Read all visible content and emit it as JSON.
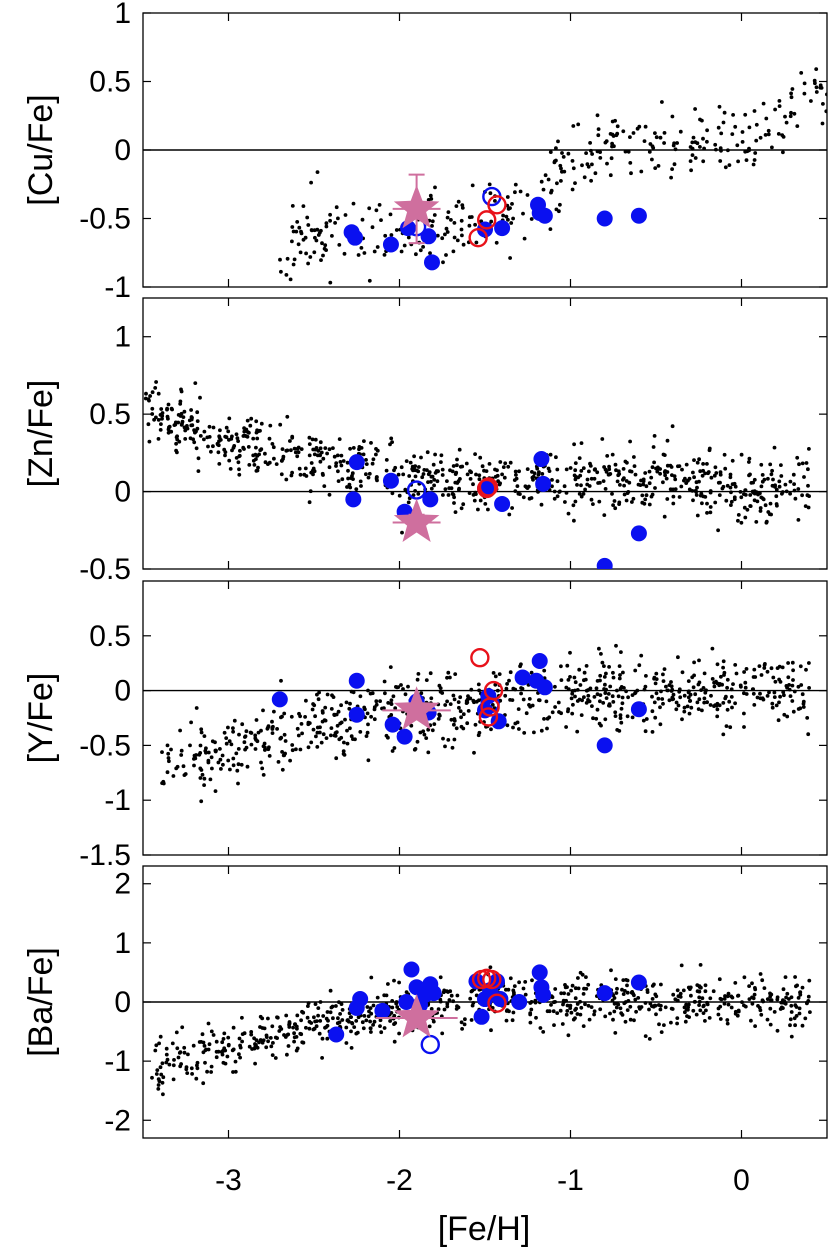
{
  "chart_data": {
    "type": "scatter",
    "xlabel": "[Fe/H]",
    "xlim": [
      -3.5,
      0.5
    ],
    "x_ticks": [
      "-3",
      "-2",
      "-1",
      "0"
    ],
    "colors": {
      "field": "#000000",
      "filled": "#0a10f0",
      "open_blue": "#0a10f0",
      "open_red": "#e8121a",
      "star": "#cf6f9e",
      "zero_line": "#000000"
    },
    "grid": false,
    "panels": [
      {
        "ylabel": "[Cu/Fe]",
        "ylim": [
          -1,
          1
        ],
        "y_ticks": [
          "1",
          "0.5",
          "0",
          "-0.5",
          "-1"
        ],
        "filled_blue": [
          [
            -2.28,
            -0.6
          ],
          [
            -2.26,
            -0.64
          ],
          [
            -2.05,
            -0.69
          ],
          [
            -1.95,
            -0.57
          ],
          [
            -1.83,
            -0.63
          ],
          [
            -1.81,
            -0.82
          ],
          [
            -1.5,
            -0.58
          ],
          [
            -1.4,
            -0.57
          ],
          [
            -1.19,
            -0.4
          ],
          [
            -1.18,
            -0.46
          ],
          [
            -1.15,
            -0.48
          ],
          [
            -0.8,
            -0.5
          ],
          [
            -0.6,
            -0.48
          ]
        ],
        "open_blue": [
          [
            -1.9,
            -0.56
          ],
          [
            -1.46,
            -0.34
          ]
        ],
        "open_red": [
          [
            -1.54,
            -0.64
          ],
          [
            -1.49,
            -0.51
          ],
          [
            -1.43,
            -0.4
          ]
        ],
        "star": [
          [
            -1.9,
            -0.43
          ]
        ],
        "star_errors": {
          "x": 0.14,
          "y_up": 0.25,
          "y_down": 0.25
        },
        "field_cloud": {
          "type": "scatter",
          "x_range": [
            -2.7,
            0.5
          ],
          "y_trend": [
            [
              -2.7,
              -0.7
            ],
            [
              -1.9,
              -0.55
            ],
            [
              -1.2,
              -0.4
            ],
            [
              -1.0,
              -0.05
            ],
            [
              -0.5,
              0.05
            ],
            [
              0.0,
              0.0
            ],
            [
              0.5,
              0.5
            ]
          ],
          "scatter": 0.14,
          "n": 360,
          "seed": 11
        }
      },
      {
        "ylabel": "[Zn/Fe]",
        "ylim": [
          -0.5,
          1.25
        ],
        "y_ticks": [
          "1",
          "0.5",
          "0",
          "-0.5"
        ],
        "filled_blue": [
          [
            -2.25,
            0.19
          ],
          [
            -2.27,
            -0.05
          ],
          [
            -2.05,
            0.07
          ],
          [
            -1.97,
            -0.13
          ],
          [
            -1.93,
            -0.17
          ],
          [
            -1.82,
            -0.05
          ],
          [
            -1.5,
            0.02
          ],
          [
            -1.47,
            0.03
          ],
          [
            -1.4,
            -0.08
          ],
          [
            -1.17,
            0.21
          ],
          [
            -1.16,
            0.05
          ],
          [
            -0.8,
            -0.48
          ],
          [
            -0.6,
            -0.27
          ]
        ],
        "open_blue": [
          [
            -1.9,
            0.01
          ]
        ],
        "open_red": [
          [
            -1.49,
            0.02
          ],
          [
            -1.48,
            0.03
          ]
        ],
        "star": [
          [
            -1.9,
            -0.2
          ]
        ],
        "star_errors": {
          "x": 0.14,
          "y_up": 0.05,
          "y_down": 0.05
        },
        "field_cloud": {
          "type": "scatter",
          "x_range": [
            -3.5,
            0.4
          ],
          "y_trend": [
            [
              -3.5,
              0.55
            ],
            [
              -3.0,
              0.33
            ],
            [
              -2.5,
              0.22
            ],
            [
              -2.0,
              0.1
            ],
            [
              -1.5,
              0.05
            ],
            [
              -1.0,
              0.08
            ],
            [
              -0.5,
              0.1
            ],
            [
              0.0,
              0.0
            ],
            [
              0.4,
              0.05
            ]
          ],
          "scatter": 0.1,
          "n": 820,
          "seed": 23
        }
      },
      {
        "ylabel": "[Y/Fe]",
        "ylim": [
          -1.5,
          1
        ],
        "y_ticks": [
          "0.5",
          "0",
          "-0.5",
          "-1",
          "-1.5"
        ],
        "filled_blue": [
          [
            -2.7,
            -0.08
          ],
          [
            -2.25,
            0.09
          ],
          [
            -2.25,
            -0.22
          ],
          [
            -2.04,
            -0.31
          ],
          [
            -1.97,
            -0.42
          ],
          [
            -1.9,
            -0.1
          ],
          [
            -1.83,
            -0.2
          ],
          [
            -1.5,
            -0.18
          ],
          [
            -1.48,
            -0.05
          ],
          [
            -1.42,
            -0.28
          ],
          [
            -1.28,
            0.12
          ],
          [
            -1.2,
            0.09
          ],
          [
            -1.18,
            0.27
          ],
          [
            -1.15,
            0.03
          ],
          [
            -0.8,
            -0.5
          ],
          [
            -0.6,
            -0.17
          ]
        ],
        "open_blue": [
          [
            -1.47,
            -0.12
          ]
        ],
        "open_red": [
          [
            -1.53,
            0.3
          ],
          [
            -1.45,
            0.0
          ],
          [
            -1.47,
            -0.15
          ],
          [
            -1.48,
            -0.24
          ]
        ],
        "star": [
          [
            -1.9,
            -0.18
          ]
        ],
        "star_errors": {
          "x": 0.2,
          "y_up": 0.04,
          "y_down": 0.04
        },
        "field_cloud": {
          "type": "scatter",
          "x_range": [
            -3.4,
            0.4
          ],
          "y_trend": [
            [
              -3.4,
              -0.75
            ],
            [
              -3.0,
              -0.55
            ],
            [
              -2.5,
              -0.3
            ],
            [
              -2.0,
              -0.2
            ],
            [
              -1.5,
              -0.15
            ],
            [
              -1.0,
              -0.02
            ],
            [
              -0.5,
              -0.05
            ],
            [
              0.0,
              0.0
            ],
            [
              0.4,
              -0.02
            ]
          ],
          "scatter": 0.16,
          "n": 760,
          "seed": 37
        }
      },
      {
        "ylabel": "[Ba/Fe]",
        "ylim": [
          -2.3,
          2.3
        ],
        "y_ticks": [
          "2",
          "1",
          "0",
          "-1",
          "-2"
        ],
        "filled_blue": [
          [
            -2.37,
            -0.55
          ],
          [
            -2.25,
            -0.1
          ],
          [
            -2.23,
            0.05
          ],
          [
            -2.1,
            -0.15
          ],
          [
            -1.96,
            0.0
          ],
          [
            -1.93,
            0.55
          ],
          [
            -1.9,
            0.25
          ],
          [
            -1.88,
            -0.05
          ],
          [
            -1.85,
            0.12
          ],
          [
            -1.82,
            0.3
          ],
          [
            -1.8,
            0.15
          ],
          [
            -1.55,
            0.35
          ],
          [
            -1.52,
            -0.25
          ],
          [
            -1.5,
            0.05
          ],
          [
            -1.47,
            0.2
          ],
          [
            -1.43,
            0.35
          ],
          [
            -1.41,
            0.05
          ],
          [
            -1.3,
            0.0
          ],
          [
            -1.18,
            0.5
          ],
          [
            -1.17,
            0.25
          ],
          [
            -1.16,
            0.12
          ],
          [
            -0.8,
            0.15
          ],
          [
            -0.6,
            0.33
          ]
        ],
        "open_blue": [
          [
            -1.82,
            -0.72
          ]
        ],
        "open_red": [
          [
            -1.52,
            0.38
          ],
          [
            -1.49,
            0.4
          ],
          [
            -1.46,
            0.38
          ],
          [
            -1.43,
            -0.02
          ]
        ],
        "star": [
          [
            -1.9,
            -0.27
          ]
        ],
        "star_errors": {
          "x": 0.24,
          "y_up": 0.06,
          "y_down": 0.06
        },
        "field_cloud": {
          "type": "scatter",
          "x_range": [
            -3.45,
            0.4
          ],
          "y_trend": [
            [
              -3.45,
              -1.1
            ],
            [
              -3.0,
              -0.75
            ],
            [
              -2.5,
              -0.4
            ],
            [
              -2.0,
              -0.1
            ],
            [
              -1.5,
              0.05
            ],
            [
              -1.0,
              0.02
            ],
            [
              -0.5,
              0.0
            ],
            [
              0.0,
              0.05
            ],
            [
              0.4,
              -0.05
            ]
          ],
          "scatter": 0.22,
          "n": 760,
          "seed": 53
        }
      }
    ]
  }
}
